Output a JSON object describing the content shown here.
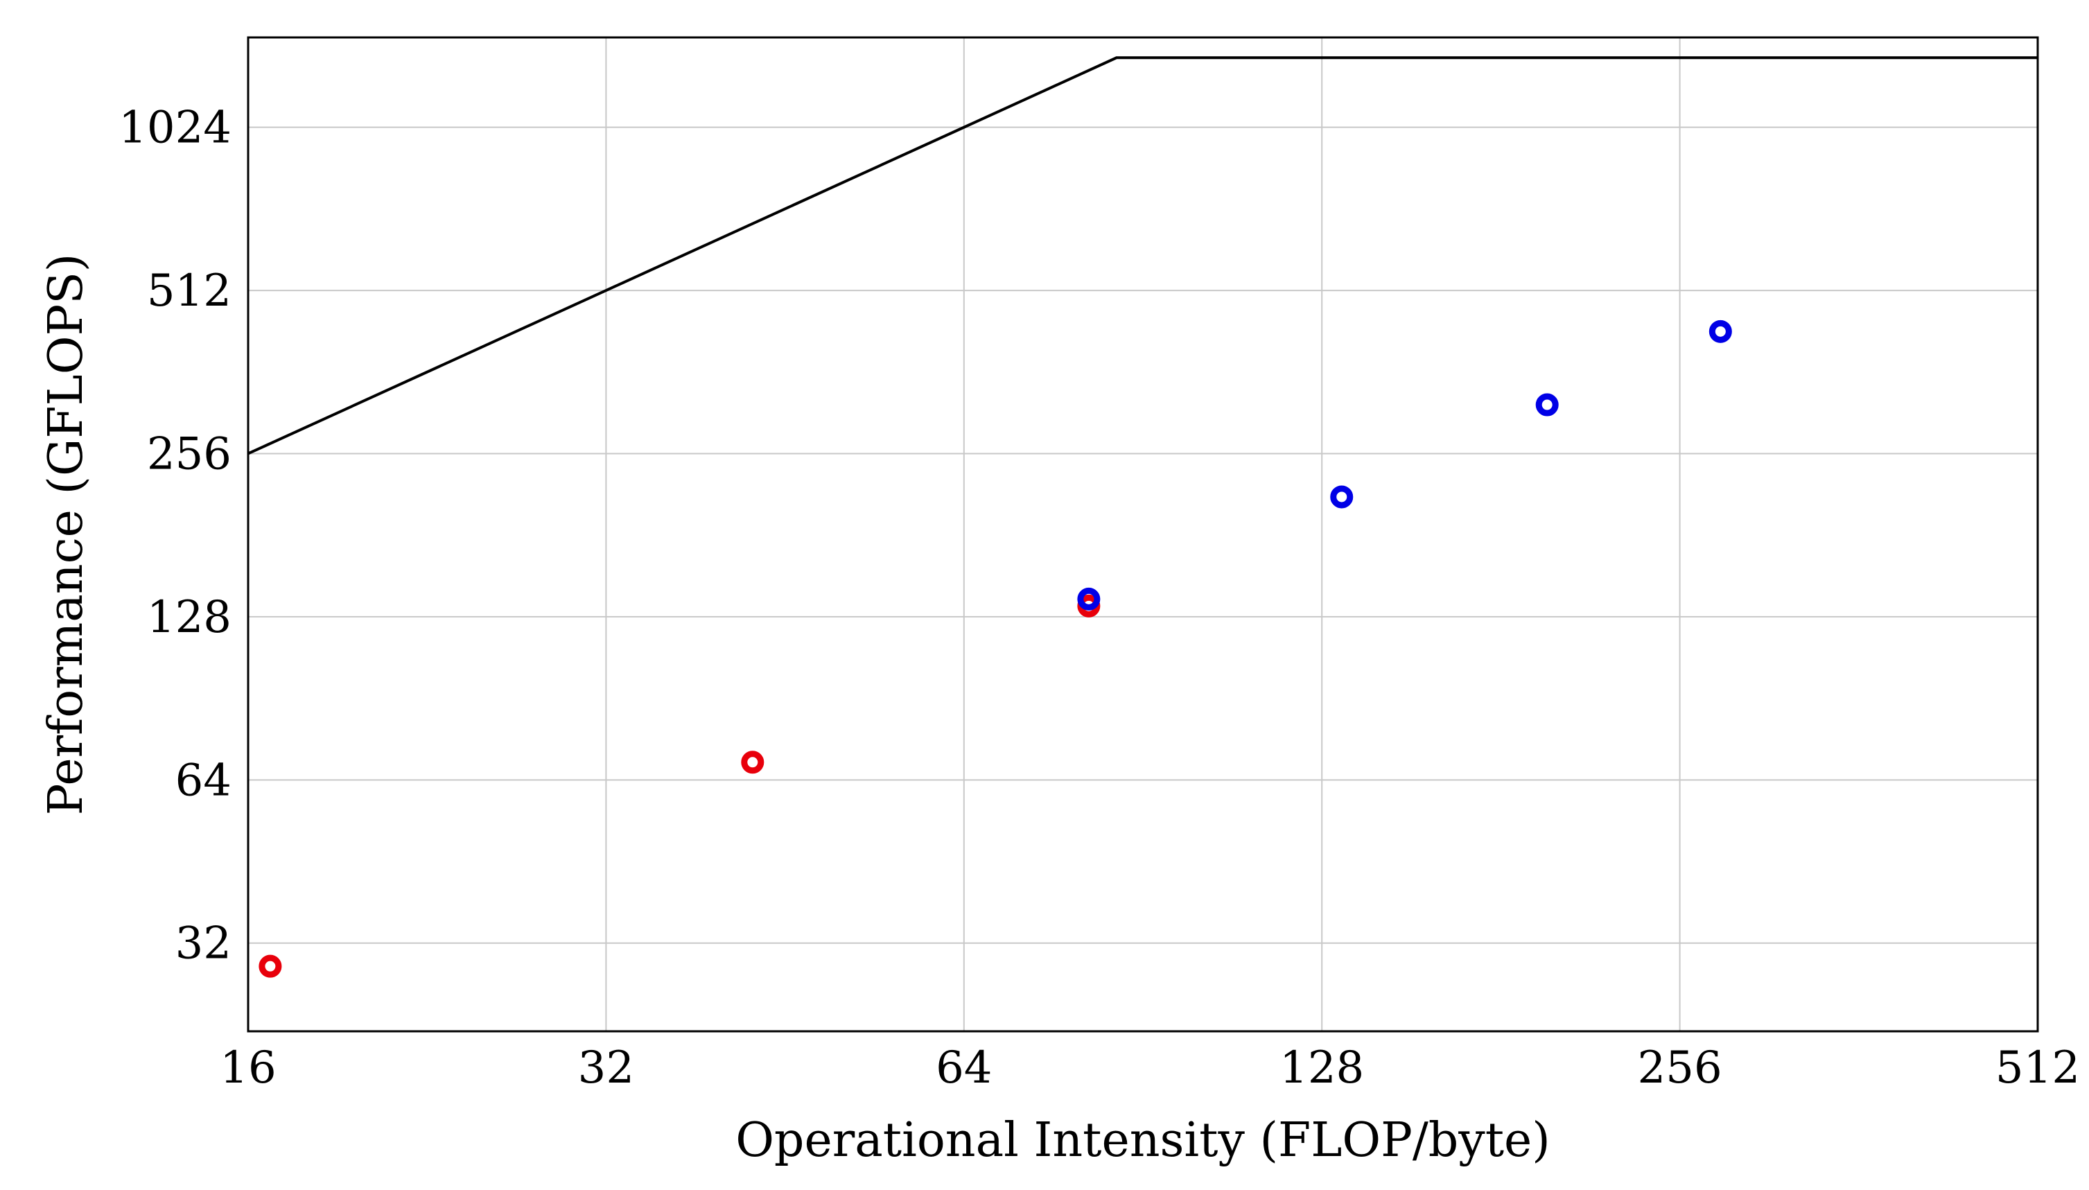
{
  "chart_data": {
    "type": "scatter",
    "title": "",
    "xlabel": "Operational Intensity (FLOP/byte)",
    "ylabel": "Performance (GFLOPS)",
    "xscale": "log2",
    "yscale": "log2",
    "xlim": [
      16,
      512
    ],
    "ylim": [
      22,
      1500
    ],
    "grid": true,
    "x_ticks": [
      16,
      32,
      64,
      128,
      256,
      512
    ],
    "x_tick_labels": [
      "16",
      "32",
      "64",
      "128",
      "256",
      "512"
    ],
    "y_ticks": [
      32,
      64,
      128,
      256,
      512,
      1024
    ],
    "y_tick_labels": [
      "32",
      "64",
      "128",
      "256",
      "512",
      "1024"
    ],
    "roofline": {
      "name": "roofline",
      "color": "#000000",
      "x": [
        16,
        86,
        512
      ],
      "y": [
        256,
        1376,
        1376
      ]
    },
    "series": [
      {
        "name": "red",
        "color": "#e8000b",
        "x": [
          16.7,
          42.5,
          81.5
        ],
        "y": [
          29,
          69,
          134
        ]
      },
      {
        "name": "blue",
        "color": "#0000e6",
        "x": [
          81.5,
          133,
          198,
          277
        ],
        "y": [
          138,
          213,
          315,
          430
        ]
      }
    ]
  }
}
